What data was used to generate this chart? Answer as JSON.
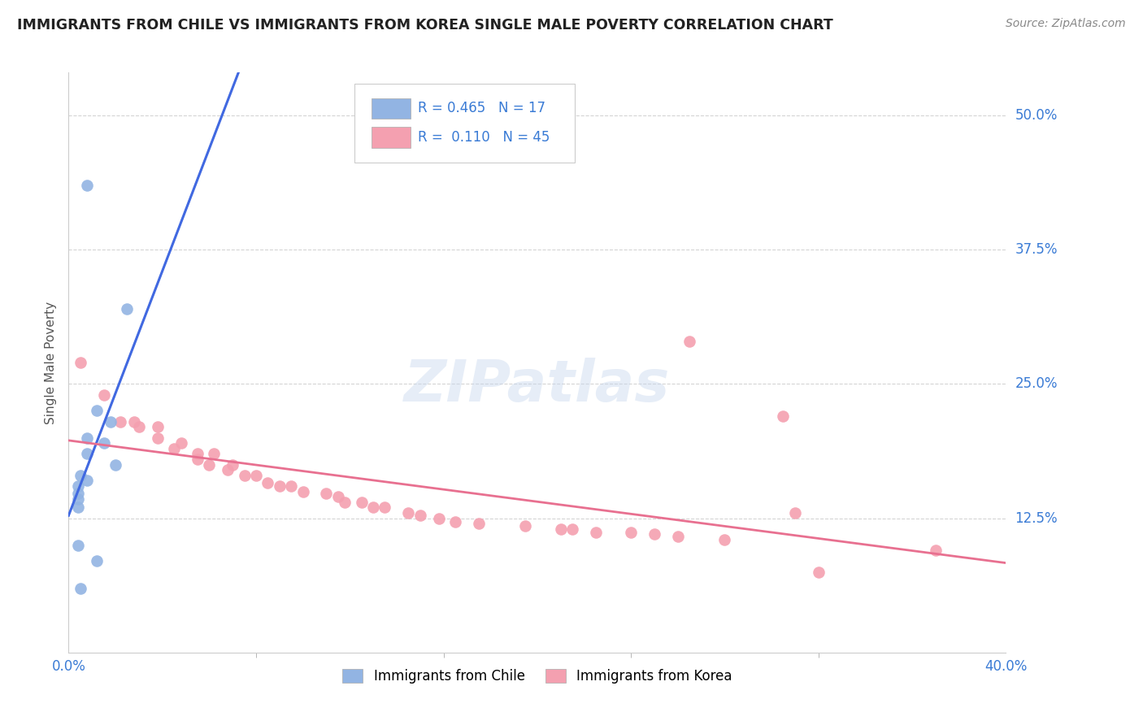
{
  "title": "IMMIGRANTS FROM CHILE VS IMMIGRANTS FROM KOREA SINGLE MALE POVERTY CORRELATION CHART",
  "source": "Source: ZipAtlas.com",
  "ylabel": "Single Male Poverty",
  "ytick_labels": [
    "50.0%",
    "37.5%",
    "25.0%",
    "12.5%"
  ],
  "ytick_values": [
    0.5,
    0.375,
    0.25,
    0.125
  ],
  "xlim": [
    0.0,
    0.4
  ],
  "ylim": [
    0.0,
    0.54
  ],
  "legend_chile": {
    "R": "0.465",
    "N": "17"
  },
  "legend_korea": {
    "R": "0.110",
    "N": "45"
  },
  "chile_color": "#92b4e3",
  "korea_color": "#f4a0b0",
  "chile_line_color": "#4169e1",
  "korea_line_color": "#e87090",
  "chile_scatter": [
    [
      0.008,
      0.435
    ],
    [
      0.025,
      0.32
    ],
    [
      0.012,
      0.225
    ],
    [
      0.018,
      0.215
    ],
    [
      0.008,
      0.2
    ],
    [
      0.015,
      0.195
    ],
    [
      0.008,
      0.185
    ],
    [
      0.02,
      0.175
    ],
    [
      0.005,
      0.165
    ],
    [
      0.008,
      0.16
    ],
    [
      0.004,
      0.155
    ],
    [
      0.004,
      0.148
    ],
    [
      0.004,
      0.143
    ],
    [
      0.004,
      0.135
    ],
    [
      0.004,
      0.1
    ],
    [
      0.012,
      0.085
    ],
    [
      0.005,
      0.06
    ]
  ],
  "korea_scatter": [
    [
      0.005,
      0.27
    ],
    [
      0.015,
      0.24
    ],
    [
      0.028,
      0.215
    ],
    [
      0.022,
      0.215
    ],
    [
      0.03,
      0.21
    ],
    [
      0.038,
      0.21
    ],
    [
      0.038,
      0.2
    ],
    [
      0.048,
      0.195
    ],
    [
      0.045,
      0.19
    ],
    [
      0.055,
      0.185
    ],
    [
      0.055,
      0.18
    ],
    [
      0.062,
      0.185
    ],
    [
      0.06,
      0.175
    ],
    [
      0.068,
      0.17
    ],
    [
      0.07,
      0.175
    ],
    [
      0.075,
      0.165
    ],
    [
      0.08,
      0.165
    ],
    [
      0.085,
      0.158
    ],
    [
      0.09,
      0.155
    ],
    [
      0.095,
      0.155
    ],
    [
      0.1,
      0.15
    ],
    [
      0.11,
      0.148
    ],
    [
      0.115,
      0.145
    ],
    [
      0.118,
      0.14
    ],
    [
      0.125,
      0.14
    ],
    [
      0.13,
      0.135
    ],
    [
      0.135,
      0.135
    ],
    [
      0.145,
      0.13
    ],
    [
      0.15,
      0.128
    ],
    [
      0.158,
      0.125
    ],
    [
      0.165,
      0.122
    ],
    [
      0.175,
      0.12
    ],
    [
      0.195,
      0.118
    ],
    [
      0.21,
      0.115
    ],
    [
      0.215,
      0.115
    ],
    [
      0.225,
      0.112
    ],
    [
      0.24,
      0.112
    ],
    [
      0.25,
      0.11
    ],
    [
      0.26,
      0.108
    ],
    [
      0.28,
      0.105
    ],
    [
      0.265,
      0.29
    ],
    [
      0.305,
      0.22
    ],
    [
      0.31,
      0.13
    ],
    [
      0.32,
      0.075
    ],
    [
      0.37,
      0.095
    ]
  ],
  "background_color": "#ffffff",
  "grid_color": "#d4d4d4"
}
